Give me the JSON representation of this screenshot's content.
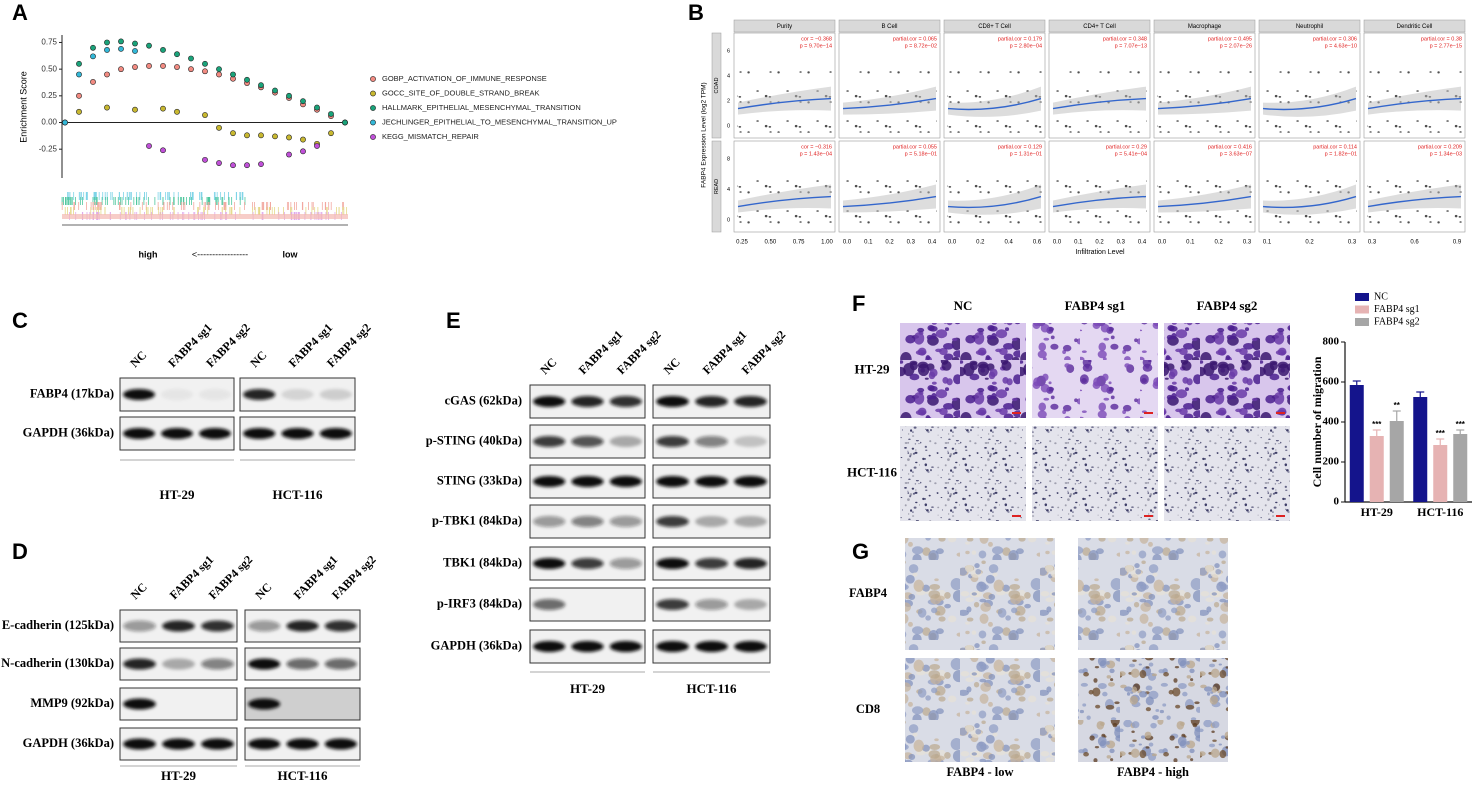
{
  "chart_data": [
    {
      "type": "scatter",
      "ylabel": "Enrichment Score",
      "x": [
        0,
        0.05,
        0.1,
        0.15,
        0.2,
        0.25,
        0.3,
        0.35,
        0.4,
        0.45,
        0.5,
        0.55,
        0.6,
        0.65,
        0.7,
        0.75,
        0.8,
        0.85,
        0.9,
        0.95,
        1
      ],
      "xlim": [
        0,
        1
      ],
      "ylim": [
        -0.52,
        0.82
      ],
      "yticks": [
        0.75,
        {
          "value": 0.5,
          "label": "0.50"
        },
        0.25,
        {
          "value": 0,
          "label": "0.00"
        },
        -0.25
      ],
      "legend": "right",
      "series": [
        {
          "name": "GOBP_ACTIVATION_OF_IMMUNE_RESPONSE",
          "color": "#f28b82",
          "values": [
            0,
            0.25,
            0.38,
            0.45,
            0.5,
            0.52,
            0.53,
            0.53,
            0.52,
            0.5,
            0.48,
            0.45,
            0.41,
            0.37,
            0.33,
            0.28,
            0.23,
            0.17,
            0.12,
            0.06,
            0
          ]
        },
        {
          "name": "GOCC_SITE_OF_DOUBLE_STRAND_BREAK",
          "color": "#c8b830",
          "values": [
            null,
            0.1,
            null,
            0.14,
            null,
            0.12,
            null,
            0.13,
            0.1,
            null,
            0.07,
            -0.05,
            -0.1,
            -0.12,
            -0.12,
            -0.13,
            -0.14,
            -0.16,
            -0.2,
            -0.1,
            0
          ]
        },
        {
          "name": "HALLMARK_EPITHELIAL_MESENCHYMAL_TRANSITION",
          "color": "#1aa37a",
          "values": [
            0,
            0.55,
            0.7,
            0.75,
            0.76,
            0.74,
            0.72,
            0.68,
            0.64,
            0.6,
            0.55,
            0.5,
            0.45,
            0.4,
            0.35,
            0.3,
            0.25,
            0.2,
            0.14,
            0.08,
            0
          ]
        },
        {
          "name": "JECHLINGER_EPITHELIAL_TO_MESENCHYMAL_TRANSITION_UP",
          "color": "#33b8d8",
          "values": [
            0,
            0.45,
            0.62,
            0.68,
            0.69,
            0.67,
            null,
            null,
            null,
            null,
            null,
            null,
            null,
            null,
            null,
            null,
            null,
            null,
            null,
            null,
            null
          ]
        },
        {
          "name": "KEGG_MISMATCH_REPAIR",
          "color": "#c050d8",
          "values": [
            null,
            null,
            null,
            null,
            null,
            null,
            -0.22,
            -0.26,
            null,
            null,
            -0.35,
            -0.38,
            -0.4,
            -0.4,
            -0.39,
            null,
            -0.3,
            -0.27,
            -0.22,
            null,
            null
          ]
        }
      ],
      "rank_labels": [
        "high",
        "<-----------------",
        "low"
      ]
    },
    {
      "type": "bar",
      "ylabel": "Cell number of migration",
      "categories": [
        "HT-29",
        "HCT-116"
      ],
      "ylim": [
        0,
        800
      ],
      "yticks": [
        0,
        200,
        400,
        600,
        800
      ],
      "legend": "top-left",
      "series": [
        {
          "name": "NC",
          "color": "#14148c",
          "values": [
            585,
            525
          ],
          "errors": [
            20,
            25
          ]
        },
        {
          "name": "FABP4 sg1",
          "color": "#e6b3b3",
          "values": [
            330,
            285
          ],
          "errors": [
            30,
            30
          ],
          "significance": [
            "***",
            "***"
          ]
        },
        {
          "name": "FABP4 sg2",
          "color": "#a6a6a6",
          "values": [
            405,
            340
          ],
          "errors": [
            50,
            20
          ],
          "significance": [
            "**",
            "***"
          ]
        }
      ]
    }
  ],
  "panels": {
    "letters": [
      "A",
      "B",
      "C",
      "D",
      "E",
      "F",
      "G"
    ],
    "B": {
      "ylabel": "FABP4 Expression Level (log2 TPM)",
      "xlabel": "Infiltration Level",
      "columns": [
        "Purity",
        "B Cell",
        "CD8+ T Cell",
        "CD4+ T Cell",
        "Macrophage",
        "Neutrophil",
        "Dendritic Cell"
      ],
      "xticks": [
        [
          "0.25",
          "0.50",
          "0.75",
          "1.00"
        ],
        [
          "0.0",
          "0.1",
          "0.2",
          "0.3",
          "0.4"
        ],
        [
          "0.0",
          "0.2",
          "0.4",
          "0.6"
        ],
        [
          "0.0",
          "0.1",
          "0.2",
          "0.3",
          "0.4"
        ],
        [
          "0.0",
          "0.1",
          "0.2",
          "0.3"
        ],
        [
          "0.1",
          "0.2",
          "0.3"
        ],
        [
          "0.3",
          "0.6",
          "0.9"
        ]
      ],
      "rows": [
        {
          "name": "COAD",
          "yticks": [
            "0",
            "2",
            "4",
            "6"
          ],
          "stats": [
            [
              "cor = −0.368",
              "p = 9.70e−14"
            ],
            [
              "partial.cor = 0.065",
              "p = 8.72e−02"
            ],
            [
              "partial.cor = 0.179",
              "p = 2.80e−04"
            ],
            [
              "partial.cor = 0.348",
              "p = 7.07e−13"
            ],
            [
              "partial.cor = 0.495",
              "p = 2.07e−26"
            ],
            [
              "partial.cor = 0.306",
              "p = 4.63e−10"
            ],
            [
              "partial.cor = 0.38",
              "p = 2.77e−15"
            ]
          ]
        },
        {
          "name": "READ",
          "yticks": [
            "0",
            "4",
            "8"
          ],
          "stats": [
            [
              "cor = −0.316",
              "p = 1.43e−04"
            ],
            [
              "partial.cor = 0.055",
              "p = 5.18e−01"
            ],
            [
              "partial.cor = 0.129",
              "p = 1.31e−01"
            ],
            [
              "partial.cor = 0.29",
              "p = 5.41e−04"
            ],
            [
              "partial.cor = 0.416",
              "p = 3.63e−07"
            ],
            [
              "partial.cor = 0.114",
              "p = 1.82e−01"
            ],
            [
              "partial.cor = 0.209",
              "p = 1.34e−03"
            ]
          ]
        }
      ]
    },
    "C": {
      "lanes": [
        "NC",
        "FABP4 sg1",
        "FABP4 sg2"
      ],
      "cells": [
        "HT-29",
        "HCT-116"
      ],
      "rows": [
        "FABP4 (17kDa)",
        "GAPDH (36kDa)"
      ]
    },
    "D": {
      "lanes": [
        "NC",
        "FABP4 sg1",
        "FABP4 sg2"
      ],
      "cells": [
        "HT-29",
        "HCT-116"
      ],
      "rows": [
        "E-cadherin (125kDa)",
        "N-cadherin (130kDa)",
        "MMP9 (92kDa)",
        "GAPDH (36kDa)"
      ]
    },
    "E": {
      "lanes": [
        "NC",
        "FABP4 sg1",
        "FABP4 sg2"
      ],
      "cells": [
        "HT-29",
        "HCT-116"
      ],
      "rows": [
        "cGAS (62kDa)",
        "p-STING (40kDa)",
        "STING (33kDa)",
        "p-TBK1 (84kDa)",
        "TBK1 (84kDa)",
        "p-IRF3 (84kDa)",
        "GAPDH (36kDa)"
      ]
    },
    "F": {
      "columns": [
        "NC",
        "FABP4 sg1",
        "FABP4 sg2"
      ],
      "rows": [
        "HT-29",
        "HCT-116"
      ]
    },
    "G": {
      "columns": [
        "FABP4 - low",
        "FABP4 - high"
      ],
      "rows": [
        "FABP4",
        "CD8"
      ]
    }
  }
}
